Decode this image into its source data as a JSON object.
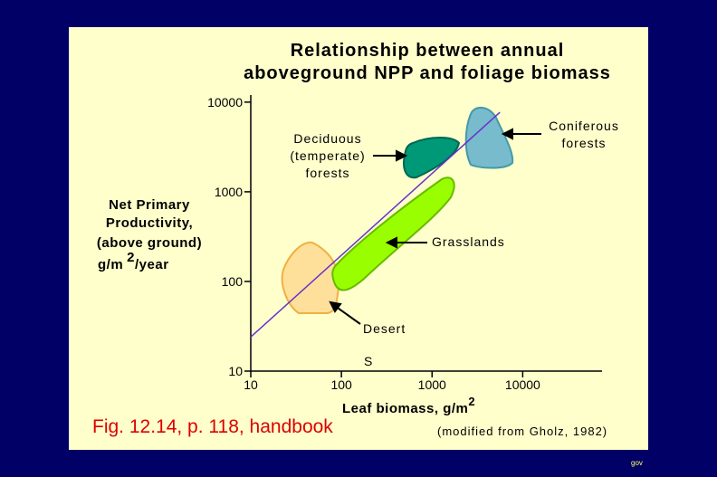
{
  "chart_data": {
    "type": "line",
    "title": [
      "Relationship between annual",
      "aboveground NPP and foliage biomass"
    ],
    "x_label": {
      "text": "Leaf biomass, g/m",
      "sup": "2"
    },
    "y_label": {
      "lines": [
        "Net Primary",
        "Productivity,",
        "(above ground)"
      ],
      "unit": "g/m",
      "sup": "2",
      "unit_rest": "/year"
    },
    "log_scale": true,
    "xlim": [
      10,
      75000
    ],
    "ylim": [
      10,
      12000
    ],
    "xticks": [
      10,
      100,
      1000,
      10000
    ],
    "yticks": [
      10,
      100,
      1000,
      10000
    ],
    "x": [
      10,
      5600
    ],
    "series": [
      {
        "color": "#6633cc",
        "values": [
          24,
          7700
        ]
      }
    ],
    "region_labels": {
      "deciduous": [
        "Deciduous",
        "(temperate)",
        "forests"
      ],
      "coniferous": [
        "Coniferous",
        "forests"
      ],
      "grasslands": "Grasslands",
      "desert": "Desert"
    },
    "marker_text": "S",
    "caption": "Fig. 12.14, p. 118, handbook",
    "source": "(modified from Gholz, 1982)",
    "footer": "gov"
  }
}
